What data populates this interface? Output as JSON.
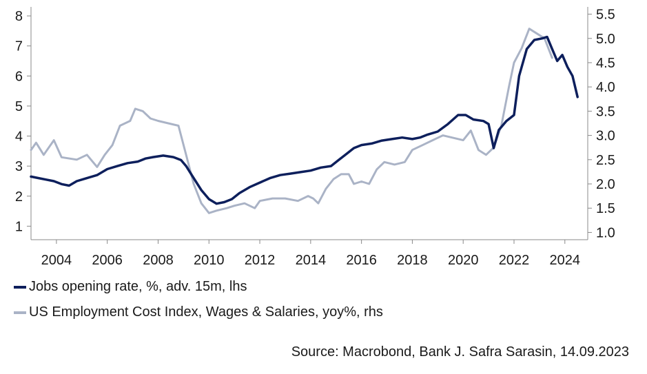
{
  "chart_data": {
    "type": "line",
    "title": "",
    "x_ticks": [
      "2004",
      "2006",
      "2008",
      "2010",
      "2012",
      "2014",
      "2016",
      "2018",
      "2020",
      "2022",
      "2024"
    ],
    "xlim": [
      2003.0,
      2024.9
    ],
    "y_left": {
      "ticks": [
        "1",
        "2",
        "3",
        "4",
        "5",
        "6",
        "7",
        "8"
      ],
      "ylim": [
        0.55,
        8.3
      ]
    },
    "y_right": {
      "ticks": [
        "1.0",
        "1.5",
        "2.0",
        "2.5",
        "3.0",
        "3.5",
        "4.0",
        "4.5",
        "5.0",
        "5.5"
      ],
      "ylim": [
        0.85,
        5.65
      ]
    },
    "grid": false,
    "legend_position": "bottom-left",
    "series": [
      {
        "name": "Jobs opening rate, %, adv. 15m, lhs",
        "axis": "left",
        "color": "#0d1f5c",
        "points": [
          [
            2003.0,
            2.65
          ],
          [
            2003.3,
            2.6
          ],
          [
            2003.6,
            2.55
          ],
          [
            2003.9,
            2.5
          ],
          [
            2004.2,
            2.4
          ],
          [
            2004.5,
            2.35
          ],
          [
            2004.8,
            2.5
          ],
          [
            2005.2,
            2.6
          ],
          [
            2005.6,
            2.7
          ],
          [
            2006.0,
            2.9
          ],
          [
            2006.4,
            3.0
          ],
          [
            2006.8,
            3.1
          ],
          [
            2007.2,
            3.15
          ],
          [
            2007.5,
            3.25
          ],
          [
            2007.8,
            3.3
          ],
          [
            2008.2,
            3.35
          ],
          [
            2008.6,
            3.3
          ],
          [
            2008.9,
            3.2
          ],
          [
            2009.1,
            3.0
          ],
          [
            2009.4,
            2.6
          ],
          [
            2009.7,
            2.2
          ],
          [
            2010.0,
            1.9
          ],
          [
            2010.3,
            1.75
          ],
          [
            2010.6,
            1.8
          ],
          [
            2010.9,
            1.9
          ],
          [
            2011.2,
            2.1
          ],
          [
            2011.6,
            2.3
          ],
          [
            2012.0,
            2.45
          ],
          [
            2012.4,
            2.6
          ],
          [
            2012.8,
            2.7
          ],
          [
            2013.2,
            2.75
          ],
          [
            2013.6,
            2.8
          ],
          [
            2014.0,
            2.85
          ],
          [
            2014.4,
            2.95
          ],
          [
            2014.8,
            3.0
          ],
          [
            2015.1,
            3.2
          ],
          [
            2015.4,
            3.4
          ],
          [
            2015.7,
            3.6
          ],
          [
            2016.0,
            3.7
          ],
          [
            2016.4,
            3.75
          ],
          [
            2016.8,
            3.85
          ],
          [
            2017.2,
            3.9
          ],
          [
            2017.6,
            3.95
          ],
          [
            2018.0,
            3.9
          ],
          [
            2018.3,
            3.95
          ],
          [
            2018.6,
            4.05
          ],
          [
            2019.0,
            4.15
          ],
          [
            2019.4,
            4.4
          ],
          [
            2019.8,
            4.7
          ],
          [
            2020.1,
            4.7
          ],
          [
            2020.4,
            4.55
          ],
          [
            2020.8,
            4.5
          ],
          [
            2021.0,
            4.4
          ],
          [
            2021.2,
            3.6
          ],
          [
            2021.4,
            4.2
          ],
          [
            2021.7,
            4.5
          ],
          [
            2022.0,
            4.7
          ],
          [
            2022.2,
            6.0
          ],
          [
            2022.5,
            6.9
          ],
          [
            2022.8,
            7.2
          ],
          [
            2023.1,
            7.25
          ],
          [
            2023.3,
            7.3
          ],
          [
            2023.5,
            6.9
          ],
          [
            2023.7,
            6.5
          ],
          [
            2023.9,
            6.7
          ],
          [
            2024.1,
            6.3
          ],
          [
            2024.3,
            6.0
          ],
          [
            2024.5,
            5.3
          ]
        ]
      },
      {
        "name": "US Employment Cost Index, Wages & Salaries, yoy%, rhs",
        "axis": "right",
        "color": "#aab3c6",
        "points": [
          [
            2003.0,
            2.7
          ],
          [
            2003.2,
            2.85
          ],
          [
            2003.5,
            2.6
          ],
          [
            2003.9,
            2.9
          ],
          [
            2004.2,
            2.55
          ],
          [
            2004.8,
            2.5
          ],
          [
            2005.2,
            2.6
          ],
          [
            2005.6,
            2.35
          ],
          [
            2005.9,
            2.6
          ],
          [
            2006.2,
            2.8
          ],
          [
            2006.5,
            3.2
          ],
          [
            2006.9,
            3.3
          ],
          [
            2007.1,
            3.55
          ],
          [
            2007.4,
            3.5
          ],
          [
            2007.7,
            3.35
          ],
          [
            2008.0,
            3.3
          ],
          [
            2008.4,
            3.25
          ],
          [
            2008.8,
            3.2
          ],
          [
            2009.1,
            2.6
          ],
          [
            2009.4,
            2.0
          ],
          [
            2009.7,
            1.6
          ],
          [
            2010.0,
            1.4
          ],
          [
            2010.3,
            1.45
          ],
          [
            2010.7,
            1.5
          ],
          [
            2011.0,
            1.55
          ],
          [
            2011.4,
            1.6
          ],
          [
            2011.8,
            1.5
          ],
          [
            2012.0,
            1.65
          ],
          [
            2012.5,
            1.7
          ],
          [
            2013.0,
            1.7
          ],
          [
            2013.5,
            1.65
          ],
          [
            2013.9,
            1.75
          ],
          [
            2014.1,
            1.7
          ],
          [
            2014.3,
            1.6
          ],
          [
            2014.6,
            1.9
          ],
          [
            2014.9,
            2.1
          ],
          [
            2015.2,
            2.2
          ],
          [
            2015.5,
            2.2
          ],
          [
            2015.7,
            2.0
          ],
          [
            2016.0,
            2.05
          ],
          [
            2016.3,
            2.0
          ],
          [
            2016.6,
            2.3
          ],
          [
            2016.9,
            2.45
          ],
          [
            2017.3,
            2.4
          ],
          [
            2017.7,
            2.45
          ],
          [
            2018.0,
            2.7
          ],
          [
            2018.4,
            2.8
          ],
          [
            2018.8,
            2.9
          ],
          [
            2019.2,
            3.0
          ],
          [
            2019.6,
            2.95
          ],
          [
            2020.0,
            2.9
          ],
          [
            2020.3,
            3.1
          ],
          [
            2020.6,
            2.7
          ],
          [
            2020.9,
            2.6
          ],
          [
            2021.2,
            2.75
          ],
          [
            2021.5,
            3.2
          ],
          [
            2021.8,
            4.0
          ],
          [
            2022.0,
            4.5
          ],
          [
            2022.3,
            4.8
          ],
          [
            2022.6,
            5.2
          ],
          [
            2022.9,
            5.1
          ],
          [
            2023.2,
            5.0
          ],
          [
            2023.5,
            4.6
          ]
        ]
      }
    ]
  },
  "legend": {
    "items": [
      {
        "label": "Jobs opening rate, %, adv. 15m, lhs",
        "color": "#0d1f5c"
      },
      {
        "label": "US Employment Cost Index, Wages & Salaries, yoy%, rhs",
        "color": "#aab3c6"
      }
    ]
  },
  "source": "Source: Macrobond, Bank J. Safra Sarasin, 14.09.2023"
}
